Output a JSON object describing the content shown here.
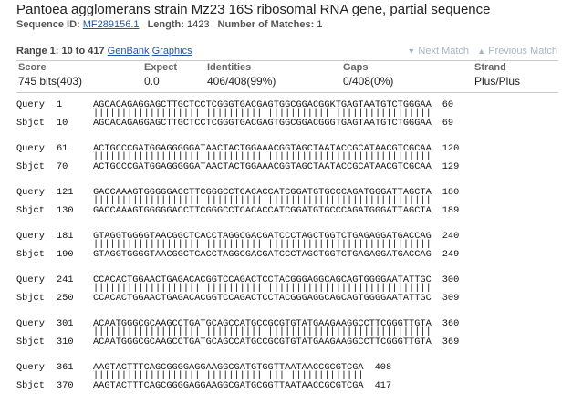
{
  "title": "Pantoea agglomerans strain Mz23 16S ribosomal RNA gene, partial sequence",
  "meta": {
    "sequence_id_label": "Sequence ID:",
    "sequence_id": "MF289156.1",
    "length_label": "Length:",
    "length": "1423",
    "matches_label": "Number of Matches:",
    "matches": "1"
  },
  "range": {
    "label": "Range 1: 10 to 417",
    "genbank": "GenBank",
    "graphics": "Graphics"
  },
  "nav": {
    "next": "Next Match",
    "previous": "Previous Match"
  },
  "stats": {
    "score_label": "Score",
    "score": "745 bits(403)",
    "expect_label": "Expect",
    "expect": "0.0",
    "identities_label": "Identities",
    "identities": "406/408(99%)",
    "gaps_label": "Gaps",
    "gaps": "0/408(0%)",
    "strand_label": "Strand",
    "strand": "Plus/Plus"
  },
  "alignment": {
    "query_label": "Query",
    "sbjct_label": "Sbjct",
    "blocks": [
      {
        "q_start": "1",
        "q_seq": "AGCACAGAGGAGCTTGCTCCTCGGGTGACGAGTGGCGGACGGKTGAGTAATGTCTGGGAA",
        "q_end": "60",
        "match": "|||||||||||||||||||||||||||||||||||||||||| |||||||||||||||||",
        "s_start": "10",
        "s_seq": "AGCACAGAGGAGCTTGCTCCTCGGGTGACGAGTGGCGGACGGGTGAGTAATGTCTGGGAA",
        "s_end": "69"
      },
      {
        "q_start": "61",
        "q_seq": "ACTGCCCGATGGAGGGGGATAACTACTGGAAACGGTAGCTAATACCGCATAACGTCGCAA",
        "q_end": "120",
        "match": "||||||||||||||||||||||||||||||||||||||||||||||||||||||||||||",
        "s_start": "70",
        "s_seq": "ACTGCCCGATGGAGGGGGATAACTACTGGAAACGGTAGCTAATACCGCATAACGTCGCAA",
        "s_end": "129"
      },
      {
        "q_start": "121",
        "q_seq": "GACCAAAGTGGGGGACCTTCGGGCCTCACACCATCGGATGTGCCCAGATGGGATTAGCTA",
        "q_end": "180",
        "match": "||||||||||||||||||||||||||||||||||||||||||||||||||||||||||||",
        "s_start": "130",
        "s_seq": "GACCAAAGTGGGGGACCTTCGGGCCTCACACCATCGGATGTGCCCAGATGGGATTAGCTA",
        "s_end": "189"
      },
      {
        "q_start": "181",
        "q_seq": "GTAGGTGGGGTAACGGCTCACCTAGGCGACGATCCCTAGCTGGTCTGAGAGGATGACCAG",
        "q_end": "240",
        "match": "||||||||||||||||||||||||||||||||||||||||||||||||||||||||||||",
        "s_start": "190",
        "s_seq": "GTAGGTGGGGTAACGGCTCACCTAGGCGACGATCCCTAGCTGGTCTGAGAGGATGACCAG",
        "s_end": "249"
      },
      {
        "q_start": "241",
        "q_seq": "CCACACTGGAACTGAGACACGGTCCAGACTCCTACGGGAGGCAGCAGTGGGGAATATTGC",
        "q_end": "300",
        "match": "||||||||||||||||||||||||||||||||||||||||||||||||||||||||||||",
        "s_start": "250",
        "s_seq": "CCACACTGGAACTGAGACACGGTCCAGACTCCTACGGGAGGCAGCAGTGGGGAATATTGC",
        "s_end": "309"
      },
      {
        "q_start": "301",
        "q_seq": "ACAATGGGCGCAAGCCTGATGCAGCCATGCCGCGTGTATGAAGAAGGCCTTCGGGTTGTA",
        "q_end": "360",
        "match": "||||||||||||||||||||||||||||||||||||||||||||||||||||||||||||",
        "s_start": "310",
        "s_seq": "ACAATGGGCGCAAGCCTGATGCAGCCATGCCGCGTGTATGAAGAAGGCCTTCGGGTTGTA",
        "s_end": "369"
      },
      {
        "q_start": "361",
        "q_seq": "AAGTACTTTCAGCGGGGAGGAAGGCGATGTGGTTAATAACCGCGTCGA",
        "q_end": "408",
        "match": "|||||||||||||||||||||||||||||||||| |||||||||||||",
        "s_start": "370",
        "s_seq": "AAGTACTTTCAGCGGGGAGGAAGGCGATGCGGTTAATAACCGCGTCGA",
        "s_end": "417"
      }
    ]
  }
}
